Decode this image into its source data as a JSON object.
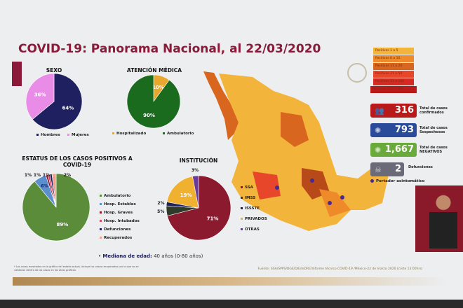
{
  "header": {
    "title": "COVID-19: Panorama Nacional, al 22/03/2020"
  },
  "colors": {
    "brand": "#8b1a3a"
  },
  "chart_data": [
    {
      "type": "pie",
      "title": "SEXO",
      "categories": [
        "Hombres",
        "Mujeres"
      ],
      "values": [
        64,
        36
      ],
      "colors": [
        "#1f2060",
        "#e98ce8"
      ]
    },
    {
      "type": "pie",
      "title": "ATENCIÓN MÉDICA",
      "categories": [
        "Hospitalizado",
        "Ambulatorio"
      ],
      "values": [
        10,
        90
      ],
      "colors": [
        "#e8a830",
        "#1b6b1f"
      ]
    },
    {
      "type": "pie",
      "title": "ESTATUS DE LOS CASOS POSITIVOS A COVID-19",
      "categories": [
        "Ambulatorio",
        "Hosp. Estables",
        "Hosp. Graves",
        "Hosp. Intubados",
        "Defunciones",
        "Recuperados"
      ],
      "values": [
        89,
        6,
        1,
        1,
        1,
        2
      ],
      "colors": [
        "#5a8c3a",
        "#5b8fd0",
        "#8b1a2e",
        "#d04a6a",
        "#1f2060",
        "#f0a090"
      ]
    },
    {
      "type": "pie",
      "title": "INSTITUCIÓN",
      "categories": [
        "SSA",
        "IMSS",
        "ISSSTE",
        "PRIVADOS",
        "OTRAS"
      ],
      "values": [
        71,
        5,
        2,
        19,
        3
      ],
      "colors": [
        "#8b1a2e",
        "#2e3a2a",
        "#1f2060",
        "#f0b030",
        "#6b3a9a"
      ]
    }
  ],
  "map_legend": [
    "Positivos 1 a 5",
    "Positivos 6 a 10",
    "Positivos 11 a 20",
    "Positivos 21 a 50",
    "Positivos 51 a 100",
    "Positivos 100 a 500"
  ],
  "map_legend_colors": [
    "#f2b43a",
    "#ee8a2a",
    "#d9661e",
    "#e8462a",
    "#d42a22",
    "#b81a1a"
  ],
  "stats": [
    {
      "value": "316",
      "label": "Total de casos confirmados",
      "color": "#b81a1a",
      "icon": "people-icon"
    },
    {
      "value": "793",
      "label": "Total de casos Sospechosos",
      "color": "#2a4a9a",
      "icon": "virus-icon"
    },
    {
      "value": "1,667",
      "label": "Total de casos NEGATIVOS",
      "color": "#6aaa3a",
      "icon": "virus-icon"
    },
    {
      "value": "2",
      "label": "Defunciones",
      "color": "#6a6a78",
      "icon": "skull-icon"
    }
  ],
  "asymptomatic": "Portador asintomático",
  "median": {
    "label": "Mediana de edad:",
    "value": "40 años (0-80 años)"
  },
  "note": "* Los casos mostrados en la gráfica del estado actual, incluye los casos recuperados por lo que no se validaron dentro de los casos en las otras gráficas",
  "source": "Fuente: SSA/SPPS/DGE/DIE/InDRE/Informe técnico.COVID-19 /México-22 de marzo 2020 (corte 13:00hrs)"
}
